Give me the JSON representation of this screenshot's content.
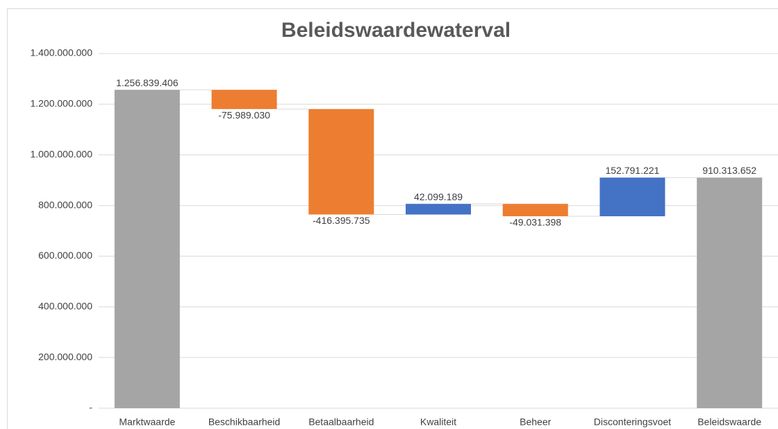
{
  "chart_data": {
    "type": "waterfall",
    "title": "Beleidswaardewaterval",
    "categories": [
      "Marktwaarde",
      "Beschikbaarheid",
      "Betaalbaarheid",
      "Kwaliteit",
      "Beheer",
      "Disconteringsvoet",
      "Beleidswaarde"
    ],
    "values": [
      1256839406,
      -75989030,
      -416395735,
      42099189,
      -49031398,
      152791221,
      910313652
    ],
    "value_labels": [
      "1.256.839.406",
      "-75.989.030",
      "-416.395.735",
      "42.099.189",
      "-49.031.398",
      "152.791.221",
      "910.313.652"
    ],
    "totals": [
      true,
      false,
      false,
      false,
      false,
      false,
      true
    ],
    "colors": [
      "#a5a5a5",
      "#ed7d31",
      "#ed7d31",
      "#4472c4",
      "#ed7d31",
      "#4472c4",
      "#a5a5a5"
    ],
    "ylim": [
      0,
      1400000000
    ],
    "yticks": [
      {
        "value": 0,
        "label": "-"
      },
      {
        "value": 200000000,
        "label": "200.000.000"
      },
      {
        "value": 400000000,
        "label": "400.000.000"
      },
      {
        "value": 600000000,
        "label": "600.000.000"
      },
      {
        "value": 800000000,
        "label": "800.000.000"
      },
      {
        "value": 1000000000,
        "label": "1.000.000.000"
      },
      {
        "value": 1200000000,
        "label": "1.200.000.000"
      },
      {
        "value": 1400000000,
        "label": "1.400.000.000"
      }
    ],
    "grid": true
  }
}
